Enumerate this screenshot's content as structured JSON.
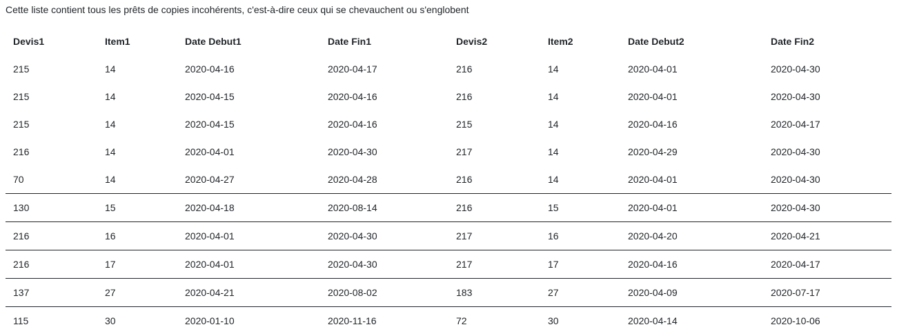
{
  "intro_text": "Cette liste contient tous les prêts de copies incohérents, c'est-à-dire ceux qui se chevauchent ou s'englobent",
  "table": {
    "headers": [
      "Devis1",
      "Item1",
      "Date Debut1",
      "Date Fin1",
      "Devis2",
      "Item2",
      "Date Debut2",
      "Date Fin2"
    ],
    "rows": [
      [
        "215",
        "14",
        "2020-04-16",
        "2020-04-17",
        "216",
        "14",
        "2020-04-01",
        "2020-04-30"
      ],
      [
        "215",
        "14",
        "2020-04-15",
        "2020-04-16",
        "216",
        "14",
        "2020-04-01",
        "2020-04-30"
      ],
      [
        "215",
        "14",
        "2020-04-15",
        "2020-04-16",
        "215",
        "14",
        "2020-04-16",
        "2020-04-17"
      ],
      [
        "216",
        "14",
        "2020-04-01",
        "2020-04-30",
        "217",
        "14",
        "2020-04-29",
        "2020-04-30"
      ],
      [
        "70",
        "14",
        "2020-04-27",
        "2020-04-28",
        "216",
        "14",
        "2020-04-01",
        "2020-04-30"
      ],
      [
        "130",
        "15",
        "2020-04-18",
        "2020-08-14",
        "216",
        "15",
        "2020-04-01",
        "2020-04-30"
      ],
      [
        "216",
        "16",
        "2020-04-01",
        "2020-04-30",
        "217",
        "16",
        "2020-04-20",
        "2020-04-21"
      ],
      [
        "216",
        "17",
        "2020-04-01",
        "2020-04-30",
        "217",
        "17",
        "2020-04-16",
        "2020-04-17"
      ],
      [
        "137",
        "27",
        "2020-04-21",
        "2020-08-02",
        "183",
        "27",
        "2020-04-09",
        "2020-07-17"
      ],
      [
        "115",
        "30",
        "2020-01-10",
        "2020-11-16",
        "72",
        "30",
        "2020-04-14",
        "2020-10-06"
      ]
    ]
  }
}
